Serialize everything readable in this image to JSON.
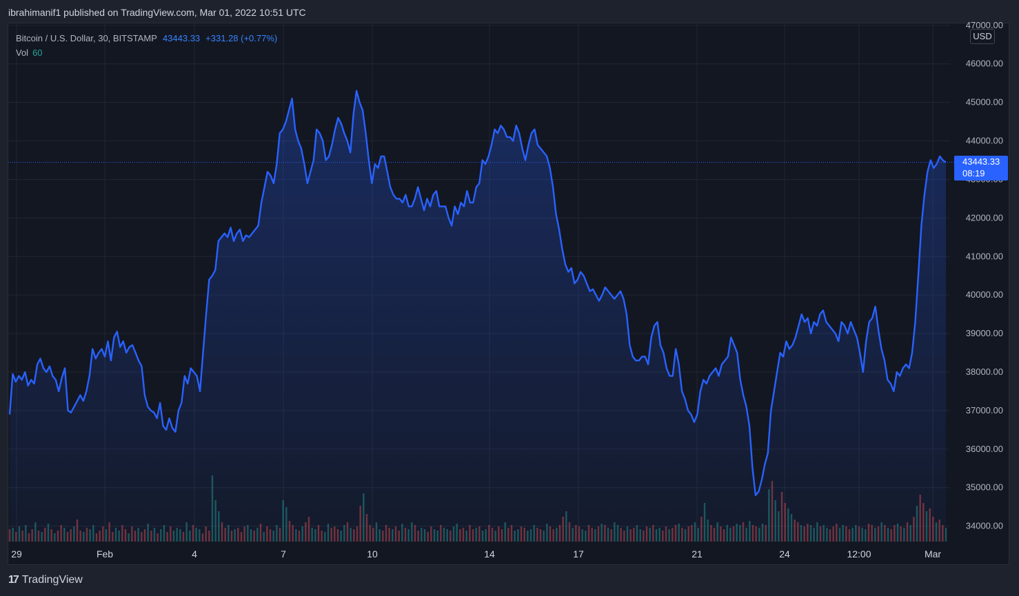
{
  "publisher_line": "ibrahimanif1 published on TradingView.com, Mar 01, 2022 10:51 UTC",
  "legend": {
    "symbol": "Bitcoin / U.S. Dollar, 30, BITSTAMP",
    "price": "43443.33",
    "change": "+331.28 (+0.77%)",
    "vol_label": "Vol",
    "vol_value": "60"
  },
  "currency": "USD",
  "last_price_tag": {
    "price": "43443.33",
    "countdown": "08:19"
  },
  "brand": "TradingView",
  "colors": {
    "line": "#2962ff",
    "volume_up": "#26a69a",
    "volume_down": "#ef5350",
    "background": "#131722"
  },
  "chart_data": {
    "type": "area",
    "ylim": [
      33600,
      47050
    ],
    "y_ticks": [
      "34000.00",
      "35000.00",
      "36000.00",
      "37000.00",
      "38000.00",
      "39000.00",
      "40000.00",
      "41000.00",
      "42000.00",
      "43000.00",
      "44000.00",
      "45000.00",
      "46000.00",
      "47000.00"
    ],
    "x_ticks": [
      "29",
      "Feb",
      "4",
      "7",
      "10",
      "14",
      "17",
      "21",
      "24",
      "12:00",
      "Mar"
    ],
    "last_price": 43443.33,
    "series": [
      {
        "values": [
          36900,
          37950,
          37750,
          37900,
          37800,
          38000,
          37650,
          37800,
          37700,
          38200,
          38350,
          38100,
          38000,
          38150,
          37900,
          37800,
          37500,
          37850,
          38100,
          37000,
          36950,
          37100,
          37250,
          37400,
          37250,
          37500,
          37900,
          38600,
          38350,
          38500,
          38600,
          38400,
          38800,
          38300,
          38900,
          39050,
          38650,
          38800,
          38500,
          38650,
          38700,
          38500,
          38300,
          38150,
          37400,
          37100,
          37000,
          36950,
          36800,
          37200,
          36600,
          36500,
          36800,
          36550,
          36450,
          37000,
          37200,
          37900,
          37700,
          38100,
          38000,
          37900,
          37500,
          38500,
          39500,
          40400,
          40500,
          40650,
          41400,
          41500,
          41600,
          41500,
          41750,
          41400,
          41600,
          41700,
          41400,
          41550,
          41500,
          41600,
          41700,
          41800,
          42400,
          42800,
          43200,
          43100,
          42900,
          43400,
          44200,
          44300,
          44500,
          44800,
          45100,
          44300,
          44000,
          43800,
          43400,
          42900,
          43200,
          43500,
          44300,
          44200,
          44000,
          43500,
          43600,
          43900,
          44300,
          44600,
          44450,
          44200,
          44000,
          43700,
          44700,
          45300,
          45000,
          44800,
          44200,
          43500,
          42900,
          43400,
          43300,
          43600,
          43600,
          43200,
          42800,
          42600,
          42500,
          42500,
          42400,
          42600,
          42300,
          42300,
          42500,
          42800,
          42500,
          42200,
          42500,
          42300,
          42600,
          42700,
          42300,
          42300,
          42300,
          42000,
          41800,
          42300,
          42100,
          42400,
          42300,
          42700,
          42400,
          42400,
          42800,
          42900,
          43500,
          43400,
          43600,
          43900,
          44300,
          44200,
          44400,
          44300,
          44100,
          44100,
          44000,
          44400,
          44200,
          43800,
          43500,
          43900,
          44200,
          44300,
          43900,
          43800,
          43700,
          43600,
          43300,
          42800,
          42100,
          41700,
          41200,
          40800,
          40600,
          40700,
          40300,
          40400,
          40600,
          40500,
          40300,
          40100,
          40150,
          40000,
          39850,
          40000,
          40200,
          40100,
          40000,
          39900,
          40000,
          40100,
          39900,
          39500,
          38700,
          38400,
          38300,
          38300,
          38400,
          38400,
          38200,
          38900,
          39200,
          39300,
          38700,
          38500,
          38100,
          37900,
          37900,
          38600,
          38200,
          37500,
          37300,
          37000,
          36900,
          36700,
          36900,
          37500,
          37800,
          37700,
          37900,
          38000,
          38100,
          37900,
          38200,
          38300,
          38400,
          38900,
          38700,
          38500,
          37800,
          37400,
          37100,
          36600,
          35500,
          34800,
          34900,
          35200,
          35600,
          35900,
          37000,
          37500,
          38000,
          38500,
          38400,
          38800,
          38600,
          38700,
          38900,
          39200,
          39500,
          39300,
          39400,
          39000,
          39300,
          39200,
          39500,
          39600,
          39300,
          39200,
          39100,
          39000,
          38800,
          39300,
          39200,
          39000,
          39300,
          39100,
          38900,
          38500,
          38000,
          38800,
          39300,
          39400,
          39700,
          39100,
          38600,
          38300,
          37800,
          37700,
          37500,
          38000,
          37900,
          38100,
          38200,
          38100,
          38500,
          39300,
          40500,
          41800,
          42600,
          43200,
          43500,
          43300,
          43400,
          43600,
          43500,
          43443
        ]
      }
    ],
    "volume": {
      "values": [
        9,
        10,
        7,
        11,
        8,
        12,
        6,
        9,
        14,
        8,
        7,
        10,
        13,
        9,
        6,
        8,
        12,
        10,
        7,
        9,
        11,
        16,
        8,
        7,
        10,
        9,
        12,
        6,
        8,
        11,
        9,
        14,
        7,
        10,
        8,
        12,
        9,
        6,
        11,
        8,
        10,
        7,
        9,
        13,
        8,
        10,
        6,
        9,
        12,
        7,
        11,
        8,
        10,
        9,
        7,
        14,
        8,
        12,
        10,
        9,
        6,
        11,
        8,
        48,
        30,
        22,
        14,
        10,
        12,
        8,
        9,
        10,
        7,
        11,
        12,
        9,
        8,
        10,
        13,
        7,
        11,
        9,
        8,
        12,
        10,
        30,
        25,
        15,
        12,
        9,
        8,
        11,
        14,
        18,
        10,
        9,
        12,
        8,
        7,
        13,
        10,
        11,
        9,
        8,
        12,
        14,
        10,
        9,
        11,
        26,
        35,
        20,
        12,
        10,
        14,
        9,
        8,
        12,
        10,
        9,
        11,
        8,
        13,
        10,
        9,
        14,
        12,
        8,
        10,
        9,
        7,
        11,
        9,
        8,
        12,
        10,
        9,
        8,
        11,
        13,
        9,
        10,
        8,
        12,
        9,
        10,
        11,
        8,
        9,
        12,
        10,
        8,
        11,
        9,
        14,
        10,
        12,
        8,
        9,
        11,
        10,
        8,
        9,
        12,
        10,
        9,
        8,
        13,
        11,
        9,
        10,
        12,
        18,
        22,
        14,
        10,
        12,
        11,
        9,
        8,
        12,
        10,
        9,
        11,
        13,
        12,
        10,
        9,
        14,
        12,
        10,
        8,
        11,
        9,
        10,
        12,
        9,
        8,
        11,
        10,
        12,
        9,
        10,
        8,
        11,
        9,
        10,
        12,
        13,
        10,
        9,
        11,
        12,
        14,
        10,
        18,
        28,
        16,
        12,
        10,
        14,
        11,
        9,
        12,
        10,
        11,
        13,
        12,
        14,
        10,
        15,
        12,
        11,
        10,
        13,
        12,
        38,
        44,
        30,
        22,
        36,
        28,
        24,
        20,
        16,
        14,
        12,
        11,
        13,
        12,
        10,
        14,
        11,
        12,
        10,
        9,
        11,
        13,
        10,
        12,
        11,
        9,
        10,
        12,
        11,
        10,
        9,
        13,
        12,
        10,
        11,
        14,
        12,
        10,
        9,
        12,
        13,
        11,
        10,
        14,
        12,
        18,
        26,
        34,
        28,
        22,
        24,
        18,
        14,
        16,
        12,
        10
      ],
      "directions": "dudududdududududduddudduduudddudduuddudduddududuudduuuduuduuddduuuddududdduudududduuduuddududduudduuddduududdduddduudddudduduudduudduuduuduuddudduduudduddudduudduuudduudduddududduuddudududuuddudduudduduudduddududduuduuddudduuduuduudduududuudduuddudduuuduuddduudduuduud"
    }
  }
}
